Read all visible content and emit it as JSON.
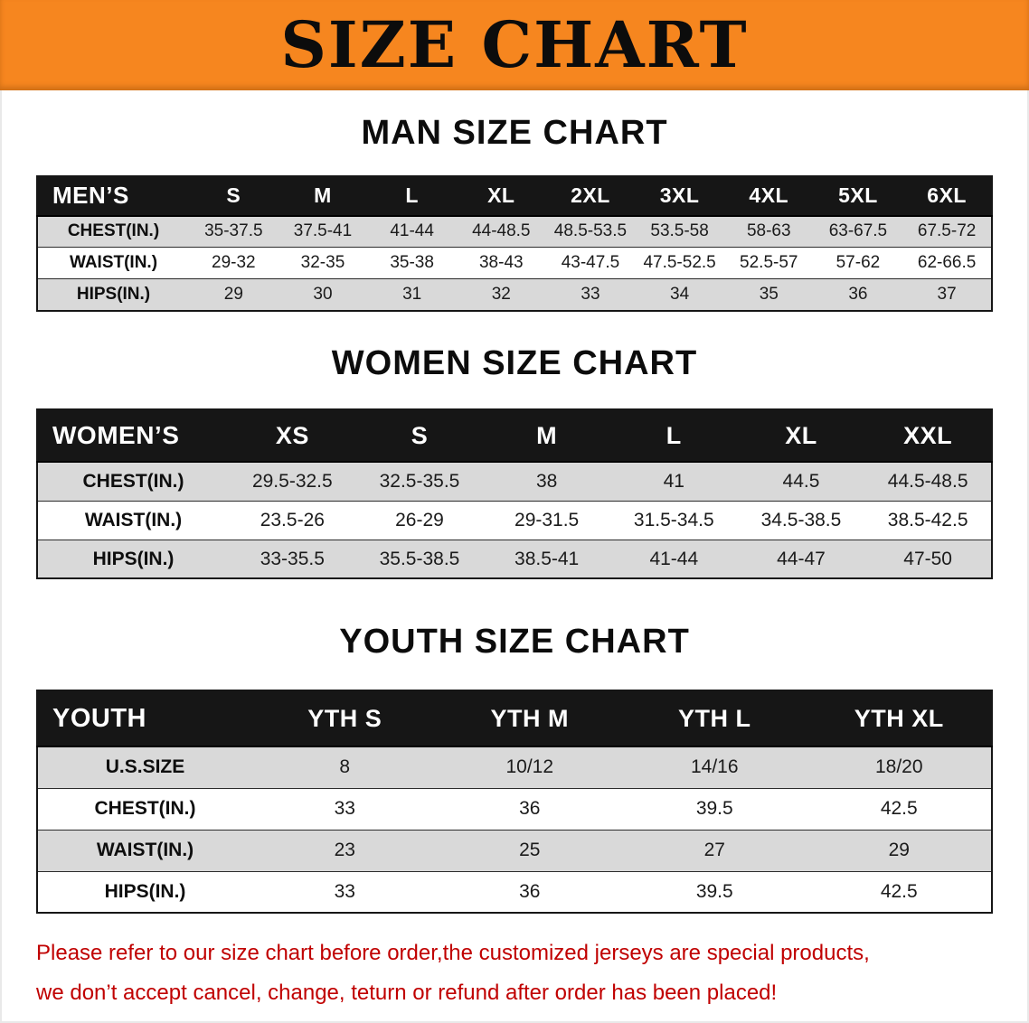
{
  "banner": {
    "title": "SIZE CHART"
  },
  "colors": {
    "banner_orange": "#F6861F",
    "table_header_black": "#161616",
    "row_stripe_gray": "#D9D9D9",
    "notice_red": "#C00000"
  },
  "sections": [
    {
      "heading": "MAN SIZE CHART",
      "table": {
        "corner": "MEN’S",
        "columns": [
          "S",
          "M",
          "L",
          "XL",
          "2XL",
          "3XL",
          "4XL",
          "5XL",
          "6XL"
        ],
        "rows": [
          {
            "label": "CHEST(IN.)",
            "values": [
              "35-37.5",
              "37.5-41",
              "41-44",
              "44-48.5",
              "48.5-53.5",
              "53.5-58",
              "58-63",
              "63-67.5",
              "67.5-72"
            ]
          },
          {
            "label": "WAIST(IN.)",
            "values": [
              "29-32",
              "32-35",
              "35-38",
              "38-43",
              "43-47.5",
              "47.5-52.5",
              "52.5-57",
              "57-62",
              "62-66.5"
            ]
          },
          {
            "label": "HIPS(IN.)",
            "values": [
              "29",
              "30",
              "31",
              "32",
              "33",
              "34",
              "35",
              "36",
              "37"
            ]
          }
        ]
      }
    },
    {
      "heading": "WOMEN SIZE CHART",
      "table": {
        "corner": "WOMEN’S",
        "columns": [
          "XS",
          "S",
          "M",
          "L",
          "XL",
          "XXL"
        ],
        "rows": [
          {
            "label": "CHEST(IN.)",
            "values": [
              "29.5-32.5",
              "32.5-35.5",
              "38",
              "41",
              "44.5",
              "44.5-48.5"
            ]
          },
          {
            "label": "WAIST(IN.)",
            "values": [
              "23.5-26",
              "26-29",
              "29-31.5",
              "31.5-34.5",
              "34.5-38.5",
              "38.5-42.5"
            ]
          },
          {
            "label": "HIPS(IN.)",
            "values": [
              "33-35.5",
              "35.5-38.5",
              "38.5-41",
              "41-44",
              "44-47",
              "47-50"
            ]
          }
        ]
      }
    },
    {
      "heading": "YOUTH SIZE CHART",
      "table": {
        "corner": "YOUTH",
        "columns": [
          "YTH S",
          "YTH M",
          "YTH L",
          "YTH XL"
        ],
        "rows": [
          {
            "label": "U.S.SIZE",
            "values": [
              "8",
              "10/12",
              "14/16",
              "18/20"
            ]
          },
          {
            "label": "CHEST(IN.)",
            "values": [
              "33",
              "36",
              "39.5",
              "42.5"
            ]
          },
          {
            "label": "WAIST(IN.)",
            "values": [
              "23",
              "25",
              "27",
              "29"
            ]
          },
          {
            "label": "HIPS(IN.)",
            "values": [
              "33",
              "36",
              "39.5",
              "42.5"
            ]
          }
        ]
      }
    }
  ],
  "footer": {
    "line1": "Please refer to our size chart before order,the customized jerseys are special products,",
    "line2": "we don’t accept cancel, change, teturn or refund after order has been placed!"
  }
}
